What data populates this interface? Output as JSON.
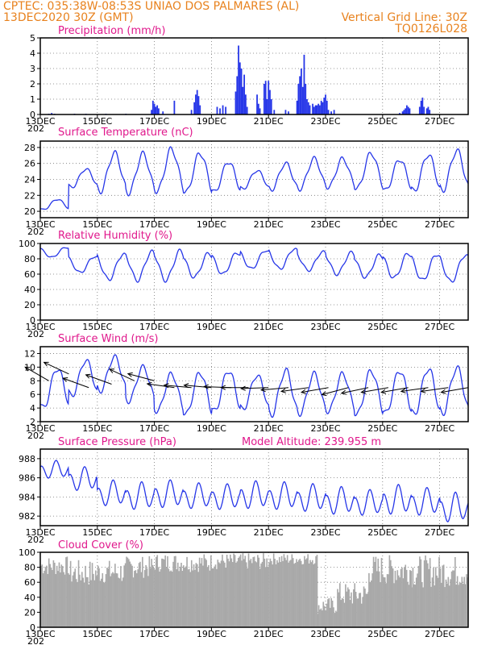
{
  "header": {
    "line1_left": "CPTEC:   035:38W-08:53S   UNIAO DOS PALMARES (AL)",
    "line2_left": "13DEC2020 30Z (GMT)",
    "line2_right": "Vertical Grid Line: 30Z",
    "line3_right": "TQ0126L028"
  },
  "colors": {
    "header": "#e8821e",
    "title": "#e0188c",
    "series": "#2636e8",
    "cloud": "#a9a9a9"
  },
  "x_axis": {
    "day_range": [
      0,
      15
    ],
    "ticks": [
      {
        "day": 0,
        "label": "13DEC"
      },
      {
        "day": 2,
        "label": "15DEC"
      },
      {
        "day": 4,
        "label": "17DEC"
      },
      {
        "day": 6,
        "label": "19DEC"
      },
      {
        "day": 8,
        "label": "21DEC"
      },
      {
        "day": 10,
        "label": "23DEC"
      },
      {
        "day": 12,
        "label": "25DEC"
      },
      {
        "day": 14,
        "label": "27DEC"
      }
    ],
    "year_fragment": "202"
  },
  "chart_data": [
    {
      "type": "bar",
      "id": "precip",
      "title": "Precipitation (mm/h)",
      "ylim": [
        0,
        5
      ],
      "yticks": [
        0,
        1,
        2,
        3,
        4,
        5
      ],
      "x_unit": "days since 13DEC 00Z",
      "series": [
        {
          "name": "Precipitation",
          "points": [
            [
              0.3,
              0.05
            ],
            [
              0.4,
              0.1
            ],
            [
              0.5,
              0.05
            ],
            [
              1.2,
              0.05
            ],
            [
              1.6,
              0.05
            ],
            [
              2.3,
              0.05
            ],
            [
              3.0,
              0.05
            ],
            [
              3.9,
              0.3
            ],
            [
              3.95,
              0.9
            ],
            [
              4.0,
              0.7
            ],
            [
              4.05,
              0.5
            ],
            [
              4.1,
              0.6
            ],
            [
              4.15,
              0.4
            ],
            [
              4.3,
              0.2
            ],
            [
              4.7,
              0.9
            ],
            [
              5.3,
              0.3
            ],
            [
              5.4,
              0.8
            ],
            [
              5.45,
              1.3
            ],
            [
              5.5,
              1.6
            ],
            [
              5.55,
              1.2
            ],
            [
              5.6,
              0.6
            ],
            [
              6.2,
              0.5
            ],
            [
              6.3,
              0.4
            ],
            [
              6.4,
              0.6
            ],
            [
              6.5,
              0.5
            ],
            [
              6.85,
              1.5
            ],
            [
              6.9,
              2.5
            ],
            [
              6.95,
              4.5
            ],
            [
              7.0,
              3.4
            ],
            [
              7.05,
              3.0
            ],
            [
              7.1,
              1.8
            ],
            [
              7.15,
              2.6
            ],
            [
              7.2,
              1.3
            ],
            [
              7.25,
              0.5
            ],
            [
              7.6,
              1.3
            ],
            [
              7.65,
              0.7
            ],
            [
              7.7,
              0.4
            ],
            [
              7.85,
              2.0
            ],
            [
              7.9,
              2.2
            ],
            [
              7.95,
              1.0
            ],
            [
              8.0,
              2.2
            ],
            [
              8.05,
              1.6
            ],
            [
              8.1,
              1.0
            ],
            [
              8.2,
              0.3
            ],
            [
              8.6,
              0.3
            ],
            [
              8.7,
              0.2
            ],
            [
              9.0,
              0.9
            ],
            [
              9.05,
              2.0
            ],
            [
              9.1,
              2.5
            ],
            [
              9.15,
              3.0
            ],
            [
              9.2,
              1.8
            ],
            [
              9.25,
              3.9
            ],
            [
              9.3,
              2.0
            ],
            [
              9.35,
              1.0
            ],
            [
              9.4,
              0.8
            ],
            [
              9.45,
              0.6
            ],
            [
              9.55,
              0.7
            ],
            [
              9.6,
              0.5
            ],
            [
              9.65,
              0.6
            ],
            [
              9.7,
              0.6
            ],
            [
              9.75,
              0.7
            ],
            [
              9.8,
              0.6
            ],
            [
              9.85,
              0.9
            ],
            [
              9.9,
              0.8
            ],
            [
              9.95,
              1.1
            ],
            [
              10.0,
              1.3
            ],
            [
              10.05,
              0.9
            ],
            [
              10.1,
              0.3
            ],
            [
              10.2,
              0.2
            ],
            [
              10.3,
              0.3
            ],
            [
              12.6,
              0.1
            ],
            [
              12.7,
              0.2
            ],
            [
              12.75,
              0.3
            ],
            [
              12.8,
              0.4
            ],
            [
              12.85,
              0.6
            ],
            [
              12.9,
              0.5
            ],
            [
              12.95,
              0.4
            ],
            [
              13.3,
              0.5
            ],
            [
              13.35,
              0.9
            ],
            [
              13.4,
              1.1
            ],
            [
              13.45,
              0.5
            ],
            [
              13.55,
              0.4
            ],
            [
              13.6,
              0.5
            ],
            [
              13.65,
              0.3
            ]
          ]
        }
      ]
    },
    {
      "type": "line",
      "id": "temp",
      "title": "Surface Temperature (nC)",
      "ylim": [
        19.2,
        28.8
      ],
      "yticks": [
        20,
        22,
        24,
        26,
        28
      ],
      "series": [
        {
          "name": "Temperature",
          "diurnal": [
            {
              "min": 20.2,
              "max": 21.5
            },
            {
              "min": 23.0,
              "max": 25.3
            },
            {
              "min": 22.5,
              "max": 27.3
            },
            {
              "min": 22.3,
              "max": 27.2
            },
            {
              "min": 22.5,
              "max": 27.8
            },
            {
              "min": 22.3,
              "max": 27.3
            },
            {
              "min": 22.4,
              "max": 26.2
            },
            {
              "min": 22.8,
              "max": 25.1
            },
            {
              "min": 22.7,
              "max": 26.0
            },
            {
              "min": 22.8,
              "max": 26.6
            },
            {
              "min": 23.0,
              "max": 26.6
            },
            {
              "min": 22.8,
              "max": 27.3
            },
            {
              "min": 22.6,
              "max": 26.5
            },
            {
              "min": 22.5,
              "max": 27.1
            },
            {
              "min": 22.6,
              "max": 27.6
            },
            {
              "min": 23.4,
              "max": 27.6
            }
          ]
        }
      ]
    },
    {
      "type": "line",
      "id": "rh",
      "title": "Relative Humidity (%)",
      "ylim": [
        0,
        100
      ],
      "yticks": [
        0,
        20,
        40,
        60,
        80,
        100
      ],
      "series": [
        {
          "name": "Humidity",
          "diurnal": [
            {
              "min": 82,
              "max": 95
            },
            {
              "min": 62,
              "max": 83
            },
            {
              "min": 53,
              "max": 86
            },
            {
              "min": 52,
              "max": 89
            },
            {
              "min": 52,
              "max": 90
            },
            {
              "min": 56,
              "max": 87
            },
            {
              "min": 60,
              "max": 88
            },
            {
              "min": 67,
              "max": 91
            },
            {
              "min": 67,
              "max": 93
            },
            {
              "min": 65,
              "max": 89
            },
            {
              "min": 60,
              "max": 88
            },
            {
              "min": 56,
              "max": 85
            },
            {
              "min": 55,
              "max": 87
            },
            {
              "min": 52,
              "max": 86
            },
            {
              "min": 50,
              "max": 85
            },
            {
              "min": 52,
              "max": 82
            }
          ]
        }
      ]
    },
    {
      "type": "line",
      "id": "wind",
      "title": "Surface Wind (m/s)",
      "ylim": [
        2,
        13
      ],
      "yticks": [
        2,
        4,
        6,
        8,
        10,
        12
      ],
      "series": [
        {
          "name": "Wind speed",
          "diurnal": [
            {
              "min": 4.0,
              "max": 9.8
            },
            {
              "min": 5.8,
              "max": 11.0
            },
            {
              "min": 6.5,
              "max": 11.5
            },
            {
              "min": 5.0,
              "max": 10.0
            },
            {
              "min": 3.5,
              "max": 9.0
            },
            {
              "min": 3.0,
              "max": 9.2
            },
            {
              "min": 3.5,
              "max": 9.5
            },
            {
              "min": 3.8,
              "max": 8.8
            },
            {
              "min": 3.0,
              "max": 9.5
            },
            {
              "min": 3.2,
              "max": 9.0
            },
            {
              "min": 3.5,
              "max": 9.0
            },
            {
              "min": 3.0,
              "max": 9.5
            },
            {
              "min": 3.2,
              "max": 9.5
            },
            {
              "min": 3.0,
              "max": 9.8
            },
            {
              "min": 3.2,
              "max": 9.9
            },
            {
              "min": 4.0,
              "max": 9.5
            }
          ]
        }
      ],
      "arrows": [
        {
          "day": 0.3,
          "speed": 8,
          "dir_deg": 150
        },
        {
          "day": 1.0,
          "speed": 9,
          "dir_deg": 155
        },
        {
          "day": 1.7,
          "speed": 7,
          "dir_deg": 160
        },
        {
          "day": 2.5,
          "speed": 7.5,
          "dir_deg": 160
        },
        {
          "day": 3.3,
          "speed": 8,
          "dir_deg": 155
        },
        {
          "day": 4.0,
          "speed": 8,
          "dir_deg": 165
        },
        {
          "day": 4.7,
          "speed": 7,
          "dir_deg": 172
        },
        {
          "day": 5.3,
          "speed": 7,
          "dir_deg": 175
        },
        {
          "day": 6.0,
          "speed": 7,
          "dir_deg": 175
        },
        {
          "day": 6.7,
          "speed": 7,
          "dir_deg": 178
        },
        {
          "day": 7.3,
          "speed": 7,
          "dir_deg": 180
        },
        {
          "day": 8.0,
          "speed": 7,
          "dir_deg": 182
        },
        {
          "day": 8.7,
          "speed": 7,
          "dir_deg": 185
        },
        {
          "day": 9.4,
          "speed": 7,
          "dir_deg": 188
        },
        {
          "day": 10.1,
          "speed": 7,
          "dir_deg": 190
        },
        {
          "day": 10.8,
          "speed": 7,
          "dir_deg": 195
        },
        {
          "day": 11.5,
          "speed": 7,
          "dir_deg": 192
        },
        {
          "day": 12.2,
          "speed": 7,
          "dir_deg": 190
        },
        {
          "day": 12.9,
          "speed": 7,
          "dir_deg": 190
        },
        {
          "day": 13.6,
          "speed": 7,
          "dir_deg": 188
        },
        {
          "day": 14.3,
          "speed": 7,
          "dir_deg": 188
        },
        {
          "day": 15.0,
          "speed": 7,
          "dir_deg": 190
        }
      ]
    },
    {
      "type": "line",
      "id": "pres",
      "title": "Surface Pressure (hPa)",
      "annotation": "Model Altitude: 239.955 m",
      "ylim": [
        981,
        989
      ],
      "yticks": [
        982,
        984,
        986,
        988
      ],
      "series": [
        {
          "name": "Pressure",
          "semidiurnal": [
            {
              "base": 986.8,
              "amp": 0.9
            },
            {
              "base": 985.8,
              "amp": 1.2
            },
            {
              "base": 984.3,
              "amp": 1.3
            },
            {
              "base": 984.0,
              "amp": 1.4
            },
            {
              "base": 984.2,
              "amp": 1.4
            },
            {
              "base": 984.0,
              "amp": 1.3
            },
            {
              "base": 983.9,
              "amp": 1.3
            },
            {
              "base": 984.1,
              "amp": 1.4
            },
            {
              "base": 984.0,
              "amp": 1.4
            },
            {
              "base": 983.8,
              "amp": 1.4
            },
            {
              "base": 983.5,
              "amp": 1.4
            },
            {
              "base": 983.3,
              "amp": 1.3
            },
            {
              "base": 983.6,
              "amp": 1.5
            },
            {
              "base": 983.4,
              "amp": 1.4
            },
            {
              "base": 982.8,
              "amp": 1.5
            },
            {
              "base": 982.3,
              "amp": 1.3
            }
          ]
        }
      ]
    },
    {
      "type": "area",
      "id": "cloud",
      "title": "Cloud Cover (%)",
      "ylim": [
        0,
        100
      ],
      "yticks": [
        0,
        20,
        40,
        60,
        80,
        100
      ],
      "series": [
        {
          "name": "Cloud cover",
          "segments": [
            {
              "from": 0.0,
              "to": 1.0,
              "lo": 55,
              "hi": 95
            },
            {
              "from": 1.0,
              "to": 2.0,
              "lo": 35,
              "hi": 90
            },
            {
              "from": 2.0,
              "to": 3.0,
              "lo": 40,
              "hi": 90
            },
            {
              "from": 3.0,
              "to": 4.0,
              "lo": 50,
              "hi": 95
            },
            {
              "from": 4.0,
              "to": 6.0,
              "lo": 60,
              "hi": 99
            },
            {
              "from": 6.0,
              "to": 8.0,
              "lo": 65,
              "hi": 99
            },
            {
              "from": 8.0,
              "to": 9.7,
              "lo": 75,
              "hi": 99
            },
            {
              "from": 9.7,
              "to": 10.4,
              "lo": 5,
              "hi": 40
            },
            {
              "from": 10.4,
              "to": 11.5,
              "lo": 10,
              "hi": 60
            },
            {
              "from": 11.5,
              "to": 13.0,
              "lo": 35,
              "hi": 97
            },
            {
              "from": 13.0,
              "to": 15.0,
              "lo": 30,
              "hi": 96
            }
          ]
        }
      ]
    }
  ]
}
